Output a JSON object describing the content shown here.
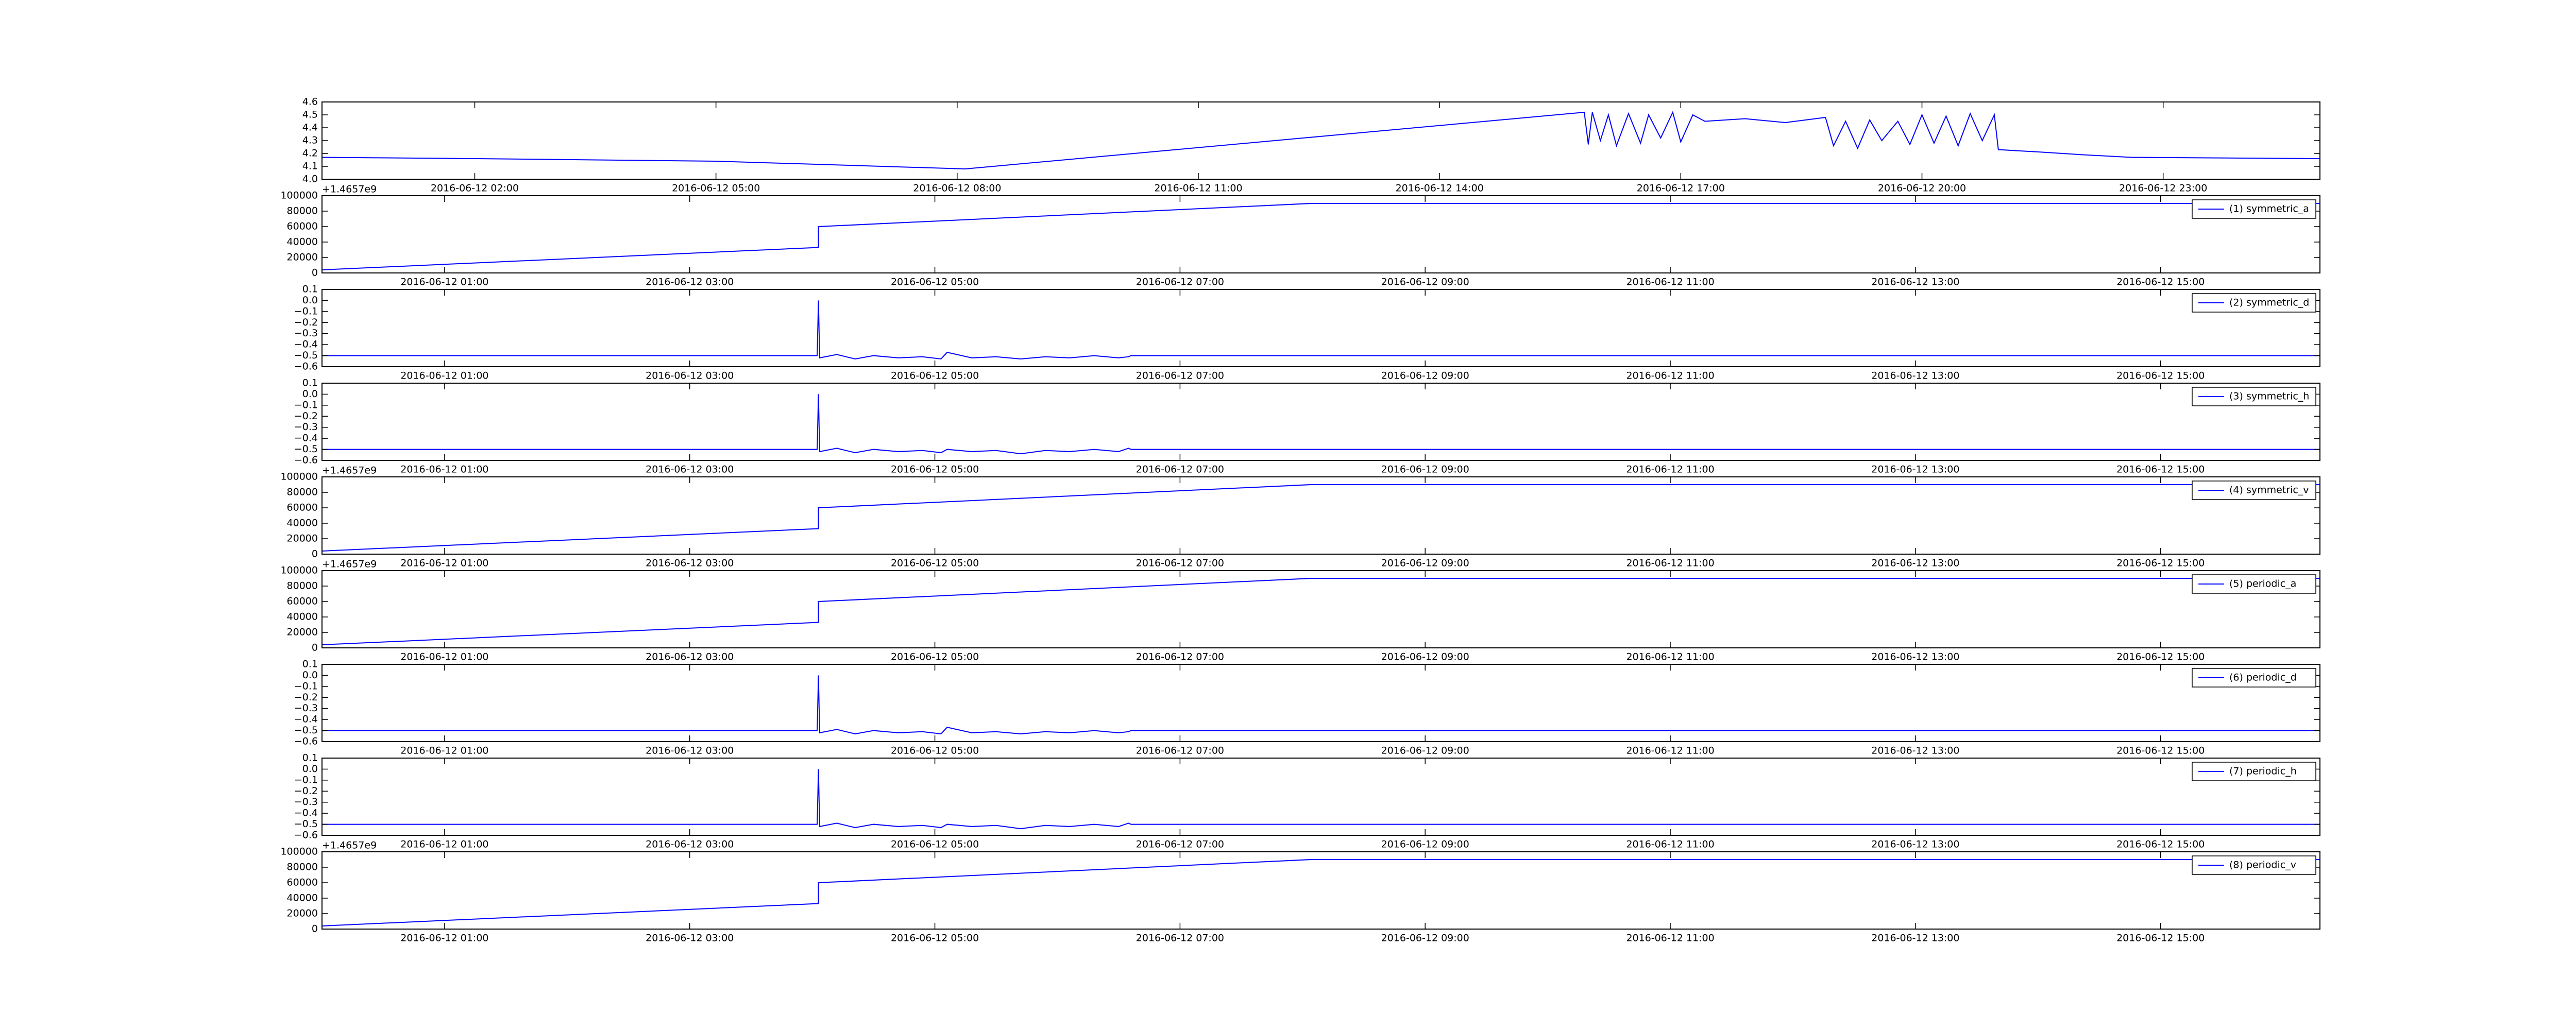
{
  "chart_data": [
    {
      "type": "line",
      "x": [
        0.1,
        2,
        5,
        8.1,
        15.8,
        15.85,
        15.9,
        16.0,
        16.1,
        16.2,
        16.35,
        16.5,
        16.6,
        16.75,
        16.9,
        17.0,
        17.15,
        17.3,
        17.8,
        18.3,
        18.8,
        18.9,
        19.05,
        19.2,
        19.35,
        19.5,
        19.7,
        19.85,
        20.0,
        20.15,
        20.3,
        20.45,
        20.6,
        20.75,
        20.9,
        20.95,
        21.5,
        22.0,
        22.6,
        24.95
      ],
      "series": [
        {
          "color": "#0000ff",
          "values": [
            4.17,
            4.16,
            4.14,
            4.08,
            4.52,
            4.27,
            4.52,
            4.3,
            4.5,
            4.26,
            4.51,
            4.28,
            4.5,
            4.32,
            4.52,
            4.29,
            4.5,
            4.45,
            4.47,
            4.44,
            4.48,
            4.26,
            4.45,
            4.24,
            4.46,
            4.3,
            4.45,
            4.27,
            4.5,
            4.28,
            4.49,
            4.26,
            4.51,
            4.3,
            4.5,
            4.23,
            4.21,
            4.19,
            4.17,
            4.16
          ]
        }
      ],
      "xlim": [
        0.1,
        24.95
      ],
      "xticks": [
        {
          "value": 2,
          "label": "2016-06-12 02:00"
        },
        {
          "value": 5,
          "label": "2016-06-12 05:00"
        },
        {
          "value": 8,
          "label": "2016-06-12 08:00"
        },
        {
          "value": 11,
          "label": "2016-06-12 11:00"
        },
        {
          "value": 14,
          "label": "2016-06-12 14:00"
        },
        {
          "value": 17,
          "label": "2016-06-12 17:00"
        },
        {
          "value": 20,
          "label": "2016-06-12 20:00"
        },
        {
          "value": 23,
          "label": "2016-06-12 23:00"
        }
      ],
      "ylim": [
        4.0,
        4.6
      ],
      "yticks": [
        {
          "value": 4.0,
          "label": "4.0"
        },
        4.1,
        4.2,
        4.3,
        4.4,
        4.5,
        4.6
      ]
    },
    {
      "type": "line",
      "x": [
        0,
        4.05,
        4.05,
        8.07,
        16.3
      ],
      "series": [
        {
          "name": "(1) symmetric_a",
          "color": "#0000ff",
          "values": [
            4000,
            33000,
            60000,
            90000,
            90000
          ]
        }
      ],
      "xlim": [
        0,
        16.3
      ],
      "xticks": [
        {
          "value": 1,
          "label": "2016-06-12 01:00"
        },
        {
          "value": 3,
          "label": "2016-06-12 03:00"
        },
        {
          "value": 5,
          "label": "2016-06-12 05:00"
        },
        {
          "value": 7,
          "label": "2016-06-12 07:00"
        },
        {
          "value": 9,
          "label": "2016-06-12 09:00"
        },
        {
          "value": 11,
          "label": "2016-06-12 11:00"
        },
        {
          "value": 13,
          "label": "2016-06-12 13:00"
        },
        {
          "value": 15,
          "label": "2016-06-12 15:00"
        }
      ],
      "ylim": [
        0,
        100000
      ],
      "yticks": [
        0,
        20000,
        40000,
        60000,
        80000,
        100000
      ],
      "y_offset_label": "+1.4657e9"
    },
    {
      "type": "line",
      "x": [
        0,
        4.04,
        4.05,
        4.06,
        4.2,
        4.35,
        4.5,
        4.7,
        4.9,
        5.05,
        5.1,
        5.3,
        5.5,
        5.7,
        5.9,
        6.1,
        6.3,
        6.5,
        6.58,
        6.6,
        16.3
      ],
      "series": [
        {
          "name": "(2) symmetric_d",
          "color": "#0000ff",
          "values": [
            -0.5,
            -0.5,
            0.0,
            -0.52,
            -0.49,
            -0.53,
            -0.5,
            -0.52,
            -0.51,
            -0.53,
            -0.47,
            -0.52,
            -0.51,
            -0.53,
            -0.51,
            -0.52,
            -0.5,
            -0.52,
            -0.51,
            -0.5,
            -0.5
          ]
        }
      ],
      "xlim": [
        0,
        16.3
      ],
      "xticks": [
        {
          "value": 1,
          "label": "2016-06-12 01:00"
        },
        {
          "value": 3,
          "label": "2016-06-12 03:00"
        },
        {
          "value": 5,
          "label": "2016-06-12 05:00"
        },
        {
          "value": 7,
          "label": "2016-06-12 07:00"
        },
        {
          "value": 9,
          "label": "2016-06-12 09:00"
        },
        {
          "value": 11,
          "label": "2016-06-12 11:00"
        },
        {
          "value": 13,
          "label": "2016-06-12 13:00"
        },
        {
          "value": 15,
          "label": "2016-06-12 15:00"
        }
      ],
      "ylim": [
        -0.6,
        0.1
      ],
      "yticks": [
        {
          "value": -0.6,
          "label": "−0.6"
        },
        {
          "value": -0.5,
          "label": "−0.5"
        },
        {
          "value": -0.4,
          "label": "−0.4"
        },
        {
          "value": -0.3,
          "label": "−0.3"
        },
        {
          "value": -0.2,
          "label": "−0.2"
        },
        {
          "value": -0.1,
          "label": "−0.1"
        },
        {
          "value": 0,
          "label": "0.0"
        },
        0.1
      ]
    },
    {
      "type": "line",
      "x": [
        0,
        4.04,
        4.05,
        4.06,
        4.2,
        4.35,
        4.5,
        4.7,
        4.9,
        5.05,
        5.1,
        5.3,
        5.5,
        5.7,
        5.9,
        6.1,
        6.3,
        6.5,
        6.58,
        6.6,
        16.3
      ],
      "series": [
        {
          "name": "(3) symmetric_h",
          "color": "#0000ff",
          "values": [
            -0.5,
            -0.5,
            0.0,
            -0.52,
            -0.49,
            -0.53,
            -0.5,
            -0.52,
            -0.51,
            -0.53,
            -0.5,
            -0.52,
            -0.51,
            -0.54,
            -0.51,
            -0.52,
            -0.5,
            -0.52,
            -0.49,
            -0.5,
            -0.5
          ]
        }
      ],
      "xlim": [
        0,
        16.3
      ],
      "xticks": [
        {
          "value": 1,
          "label": "2016-06-12 01:00"
        },
        {
          "value": 3,
          "label": "2016-06-12 03:00"
        },
        {
          "value": 5,
          "label": "2016-06-12 05:00"
        },
        {
          "value": 7,
          "label": "2016-06-12 07:00"
        },
        {
          "value": 9,
          "label": "2016-06-12 09:00"
        },
        {
          "value": 11,
          "label": "2016-06-12 11:00"
        },
        {
          "value": 13,
          "label": "2016-06-12 13:00"
        },
        {
          "value": 15,
          "label": "2016-06-12 15:00"
        }
      ],
      "ylim": [
        -0.6,
        0.1
      ],
      "yticks": [
        {
          "value": -0.6,
          "label": "−0.6"
        },
        {
          "value": -0.5,
          "label": "−0.5"
        },
        {
          "value": -0.4,
          "label": "−0.4"
        },
        {
          "value": -0.3,
          "label": "−0.3"
        },
        {
          "value": -0.2,
          "label": "−0.2"
        },
        {
          "value": -0.1,
          "label": "−0.1"
        },
        {
          "value": 0,
          "label": "0.0"
        },
        0.1
      ]
    },
    {
      "type": "line",
      "x": [
        0,
        4.05,
        4.05,
        8.07,
        16.3
      ],
      "series": [
        {
          "name": "(4) symmetric_v",
          "color": "#0000ff",
          "values": [
            4000,
            33000,
            60000,
            90000,
            90000
          ]
        }
      ],
      "xlim": [
        0,
        16.3
      ],
      "xticks": [
        {
          "value": 1,
          "label": "2016-06-12 01:00"
        },
        {
          "value": 3,
          "label": "2016-06-12 03:00"
        },
        {
          "value": 5,
          "label": "2016-06-12 05:00"
        },
        {
          "value": 7,
          "label": "2016-06-12 07:00"
        },
        {
          "value": 9,
          "label": "2016-06-12 09:00"
        },
        {
          "value": 11,
          "label": "2016-06-12 11:00"
        },
        {
          "value": 13,
          "label": "2016-06-12 13:00"
        },
        {
          "value": 15,
          "label": "2016-06-12 15:00"
        }
      ],
      "ylim": [
        0,
        100000
      ],
      "yticks": [
        0,
        20000,
        40000,
        60000,
        80000,
        100000
      ],
      "y_offset_label": "+1.4657e9"
    },
    {
      "type": "line",
      "x": [
        0,
        4.05,
        4.05,
        8.07,
        16.3
      ],
      "series": [
        {
          "name": "(5) periodic_a",
          "color": "#0000ff",
          "values": [
            4000,
            33000,
            60000,
            90000,
            90000
          ]
        }
      ],
      "xlim": [
        0,
        16.3
      ],
      "xticks": [
        {
          "value": 1,
          "label": "2016-06-12 01:00"
        },
        {
          "value": 3,
          "label": "2016-06-12 03:00"
        },
        {
          "value": 5,
          "label": "2016-06-12 05:00"
        },
        {
          "value": 7,
          "label": "2016-06-12 07:00"
        },
        {
          "value": 9,
          "label": "2016-06-12 09:00"
        },
        {
          "value": 11,
          "label": "2016-06-12 11:00"
        },
        {
          "value": 13,
          "label": "2016-06-12 13:00"
        },
        {
          "value": 15,
          "label": "2016-06-12 15:00"
        }
      ],
      "ylim": [
        0,
        100000
      ],
      "yticks": [
        0,
        20000,
        40000,
        60000,
        80000,
        100000
      ],
      "y_offset_label": "+1.4657e9"
    },
    {
      "type": "line",
      "x": [
        0,
        4.04,
        4.05,
        4.06,
        4.2,
        4.35,
        4.5,
        4.7,
        4.9,
        5.05,
        5.1,
        5.3,
        5.5,
        5.7,
        5.9,
        6.1,
        6.3,
        6.5,
        6.58,
        6.6,
        16.3
      ],
      "series": [
        {
          "name": "(6) periodic_d",
          "color": "#0000ff",
          "values": [
            -0.5,
            -0.5,
            0.0,
            -0.52,
            -0.49,
            -0.53,
            -0.5,
            -0.52,
            -0.51,
            -0.53,
            -0.47,
            -0.52,
            -0.51,
            -0.53,
            -0.51,
            -0.52,
            -0.5,
            -0.52,
            -0.51,
            -0.5,
            -0.5
          ]
        }
      ],
      "xlim": [
        0,
        16.3
      ],
      "xticks": [
        {
          "value": 1,
          "label": "2016-06-12 01:00"
        },
        {
          "value": 3,
          "label": "2016-06-12 03:00"
        },
        {
          "value": 5,
          "label": "2016-06-12 05:00"
        },
        {
          "value": 7,
          "label": "2016-06-12 07:00"
        },
        {
          "value": 9,
          "label": "2016-06-12 09:00"
        },
        {
          "value": 11,
          "label": "2016-06-12 11:00"
        },
        {
          "value": 13,
          "label": "2016-06-12 13:00"
        },
        {
          "value": 15,
          "label": "2016-06-12 15:00"
        }
      ],
      "ylim": [
        -0.6,
        0.1
      ],
      "yticks": [
        {
          "value": -0.6,
          "label": "−0.6"
        },
        {
          "value": -0.5,
          "label": "−0.5"
        },
        {
          "value": -0.4,
          "label": "−0.4"
        },
        {
          "value": -0.3,
          "label": "−0.3"
        },
        {
          "value": -0.2,
          "label": "−0.2"
        },
        {
          "value": -0.1,
          "label": "−0.1"
        },
        {
          "value": 0,
          "label": "0.0"
        },
        0.1
      ]
    },
    {
      "type": "line",
      "x": [
        0,
        4.04,
        4.05,
        4.06,
        4.2,
        4.35,
        4.5,
        4.7,
        4.9,
        5.05,
        5.1,
        5.3,
        5.5,
        5.7,
        5.9,
        6.1,
        6.3,
        6.5,
        6.58,
        6.6,
        16.3
      ],
      "series": [
        {
          "name": "(7) periodic_h",
          "color": "#0000ff",
          "values": [
            -0.5,
            -0.5,
            0.0,
            -0.52,
            -0.49,
            -0.53,
            -0.5,
            -0.52,
            -0.51,
            -0.53,
            -0.5,
            -0.52,
            -0.51,
            -0.54,
            -0.51,
            -0.52,
            -0.5,
            -0.52,
            -0.49,
            -0.5,
            -0.5
          ]
        }
      ],
      "xlim": [
        0,
        16.3
      ],
      "xticks": [
        {
          "value": 1,
          "label": "2016-06-12 01:00"
        },
        {
          "value": 3,
          "label": "2016-06-12 03:00"
        },
        {
          "value": 5,
          "label": "2016-06-12 05:00"
        },
        {
          "value": 7,
          "label": "2016-06-12 07:00"
        },
        {
          "value": 9,
          "label": "2016-06-12 09:00"
        },
        {
          "value": 11,
          "label": "2016-06-12 11:00"
        },
        {
          "value": 13,
          "label": "2016-06-12 13:00"
        },
        {
          "value": 15,
          "label": "2016-06-12 15:00"
        }
      ],
      "ylim": [
        -0.6,
        0.1
      ],
      "yticks": [
        {
          "value": -0.6,
          "label": "−0.6"
        },
        {
          "value": -0.5,
          "label": "−0.5"
        },
        {
          "value": -0.4,
          "label": "−0.4"
        },
        {
          "value": -0.3,
          "label": "−0.3"
        },
        {
          "value": -0.2,
          "label": "−0.2"
        },
        {
          "value": -0.1,
          "label": "−0.1"
        },
        {
          "value": 0,
          "label": "0.0"
        },
        0.1
      ]
    },
    {
      "type": "line",
      "x": [
        0,
        4.05,
        4.05,
        8.07,
        16.3
      ],
      "series": [
        {
          "name": "(8) periodic_v",
          "color": "#0000ff",
          "values": [
            4000,
            33000,
            60000,
            90000,
            90000
          ]
        }
      ],
      "xlim": [
        0,
        16.3
      ],
      "xticks": [
        {
          "value": 1,
          "label": "2016-06-12 01:00"
        },
        {
          "value": 3,
          "label": "2016-06-12 03:00"
        },
        {
          "value": 5,
          "label": "2016-06-12 05:00"
        },
        {
          "value": 7,
          "label": "2016-06-12 07:00"
        },
        {
          "value": 9,
          "label": "2016-06-12 09:00"
        },
        {
          "value": 11,
          "label": "2016-06-12 11:00"
        },
        {
          "value": 13,
          "label": "2016-06-12 13:00"
        },
        {
          "value": 15,
          "label": "2016-06-12 15:00"
        }
      ],
      "ylim": [
        0,
        100000
      ],
      "yticks": [
        0,
        20000,
        40000,
        60000,
        80000,
        100000
      ],
      "y_offset_label": "+1.4657e9"
    }
  ]
}
